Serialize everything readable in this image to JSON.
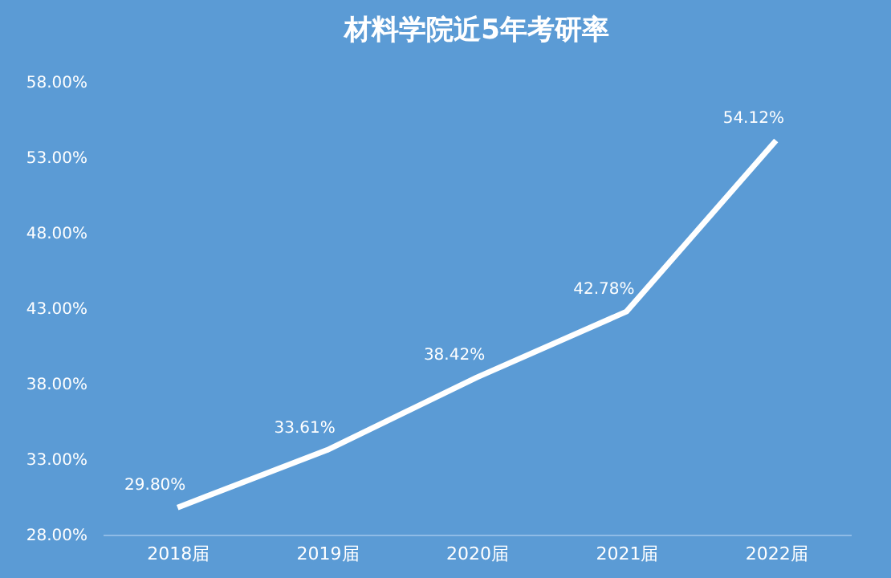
{
  "chart_data": {
    "type": "line",
    "title": "材料学院近5年考研率",
    "categories": [
      "2018届",
      "2019届",
      "2020届",
      "2021届",
      "2022届"
    ],
    "series": [
      {
        "color": "#ffffff",
        "values": [
          29.8,
          33.61,
          38.42,
          42.78,
          54.12
        ],
        "value_labels": [
          "29.80%",
          "33.61%",
          "38.42%",
          "42.78%",
          "54.12%"
        ]
      }
    ],
    "ylim": [
      28,
      58
    ],
    "yticks": [
      {
        "value": 28,
        "label": "28.00%"
      },
      {
        "value": 33,
        "label": "33.00%"
      },
      {
        "value": 38,
        "label": "38.00%"
      },
      {
        "value": 43,
        "label": "43.00%"
      },
      {
        "value": 48,
        "label": "48.00%"
      },
      {
        "value": 53,
        "label": "53.00%"
      },
      {
        "value": 58,
        "label": "58.00%"
      }
    ],
    "grid": false,
    "marker": "none",
    "line_style": "solid"
  }
}
